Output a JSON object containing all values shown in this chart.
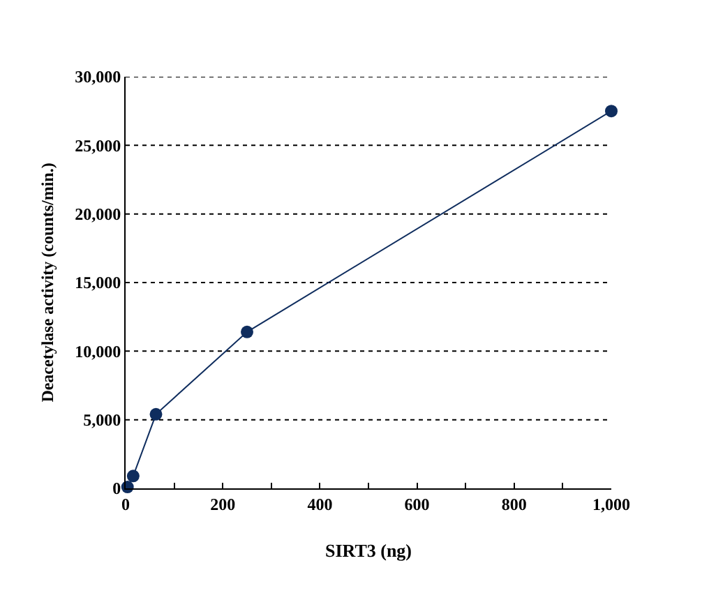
{
  "chart_data": {
    "type": "line",
    "xlabel": "SIRT3 (ng)",
    "ylabel": "Deacetylase activity (counts/min.)",
    "x": [
      3.9,
      15.6,
      62.5,
      250,
      1000
    ],
    "series": [
      {
        "color": "#0f2d5e",
        "values": [
          100,
          900,
          5400,
          11400,
          27500
        ]
      }
    ],
    "xlim": [
      0,
      1000
    ],
    "ylim": [
      0,
      30000
    ],
    "xticks": [
      0,
      {
        "value": 100,
        "label": null
      },
      200,
      {
        "value": 300,
        "label": null
      },
      400,
      {
        "value": 500,
        "label": null
      },
      600,
      {
        "value": 700,
        "label": null
      },
      800,
      {
        "value": 900,
        "label": null
      },
      {
        "value": 1000,
        "label": "1,000"
      }
    ],
    "yticks": [
      0,
      {
        "value": 5000,
        "label": "5,000"
      },
      {
        "value": 10000,
        "label": "10,000"
      },
      {
        "value": 15000,
        "label": "15,000"
      },
      {
        "value": 20000,
        "label": "20,000"
      },
      {
        "value": 25000,
        "label": "25,000"
      },
      {
        "value": 30000,
        "label": "30,000"
      }
    ],
    "grid": "y",
    "marker": "circle",
    "line_style": "solid"
  }
}
